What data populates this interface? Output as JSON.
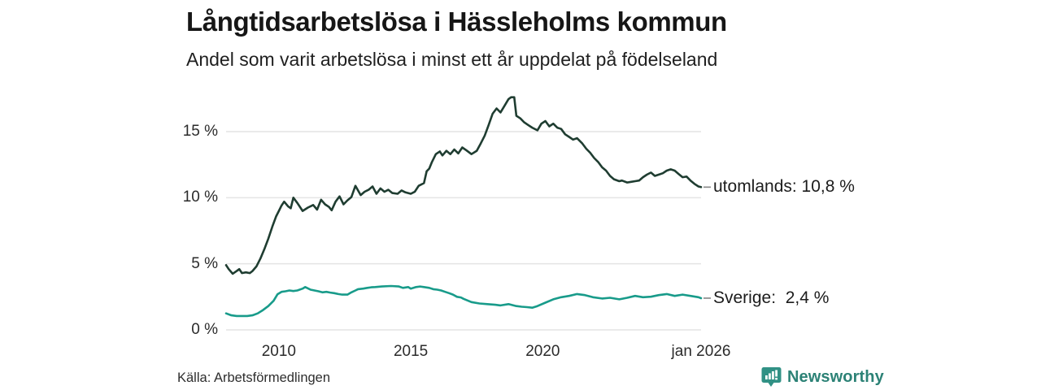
{
  "header": {
    "title": "Långtidsarbetslösa i Hässleholms kommun",
    "subtitle": "Andel som varit arbetslösa i minst ett år uppdelat på födelseland"
  },
  "footer": {
    "source": "Källa: Arbetsförmedlingen",
    "brand": "Newsworthy",
    "brand_color": "#2c8276",
    "brand_icon": "newsworthy-speech-bubble-bar-chart"
  },
  "chart_data": {
    "type": "line",
    "title": "Långtidsarbetslösa i Hässleholms kommun",
    "subtitle": "Andel som varit arbetslösa i minst ett år uppdelat på födelseland",
    "xlabel": "",
    "ylabel": "%",
    "x_range": [
      2008,
      2026
    ],
    "ylim": [
      0,
      18
    ],
    "grid": "horizontal",
    "grid_color": "#e4e4e4",
    "legend_position": "right-end-labels",
    "connector_color": "#8c8c8c",
    "y_ticks": [
      {
        "value": 15,
        "label": "15 %"
      },
      {
        "value": 10,
        "label": "10 %"
      },
      {
        "value": 5,
        "label": "5 %"
      },
      {
        "value": 0,
        "label": "0 %"
      }
    ],
    "x_ticks": [
      {
        "year": 2010,
        "label": "2010"
      },
      {
        "year": 2015,
        "label": "2015"
      },
      {
        "year": 2020,
        "label": "2020"
      },
      {
        "year": 2026,
        "label": "jan 2026"
      }
    ],
    "series": [
      {
        "name": "utomlands",
        "color": "#1f3d31",
        "end_label": "utomlands: 10,8 %",
        "end_value": 10.8,
        "points": [
          [
            2008.0,
            4.9
          ],
          [
            2008.1,
            4.6
          ],
          [
            2008.25,
            4.25
          ],
          [
            2008.4,
            4.45
          ],
          [
            2008.5,
            4.6
          ],
          [
            2008.6,
            4.3
          ],
          [
            2008.75,
            4.35
          ],
          [
            2008.9,
            4.3
          ],
          [
            2009.0,
            4.45
          ],
          [
            2009.15,
            4.8
          ],
          [
            2009.3,
            5.4
          ],
          [
            2009.45,
            6.1
          ],
          [
            2009.6,
            6.9
          ],
          [
            2009.75,
            7.8
          ],
          [
            2009.9,
            8.6
          ],
          [
            2010.0,
            9.0
          ],
          [
            2010.1,
            9.4
          ],
          [
            2010.2,
            9.7
          ],
          [
            2010.35,
            9.35
          ],
          [
            2010.45,
            9.2
          ],
          [
            2010.55,
            10.0
          ],
          [
            2010.7,
            9.6
          ],
          [
            2010.9,
            9.0
          ],
          [
            2011.1,
            9.25
          ],
          [
            2011.3,
            9.45
          ],
          [
            2011.45,
            9.1
          ],
          [
            2011.6,
            9.85
          ],
          [
            2011.75,
            9.5
          ],
          [
            2011.9,
            9.3
          ],
          [
            2012.0,
            9.05
          ],
          [
            2012.15,
            9.7
          ],
          [
            2012.3,
            10.1
          ],
          [
            2012.45,
            9.5
          ],
          [
            2012.6,
            9.8
          ],
          [
            2012.75,
            10.05
          ],
          [
            2012.9,
            10.9
          ],
          [
            2013.1,
            10.2
          ],
          [
            2013.25,
            10.45
          ],
          [
            2013.4,
            10.6
          ],
          [
            2013.55,
            10.85
          ],
          [
            2013.7,
            10.3
          ],
          [
            2013.85,
            10.7
          ],
          [
            2014.0,
            10.45
          ],
          [
            2014.15,
            10.6
          ],
          [
            2014.3,
            10.35
          ],
          [
            2014.5,
            10.3
          ],
          [
            2014.65,
            10.55
          ],
          [
            2014.8,
            10.4
          ],
          [
            2015.0,
            10.3
          ],
          [
            2015.15,
            10.45
          ],
          [
            2015.3,
            10.9
          ],
          [
            2015.5,
            11.1
          ],
          [
            2015.6,
            12.0
          ],
          [
            2015.7,
            12.2
          ],
          [
            2015.8,
            12.7
          ],
          [
            2015.95,
            13.3
          ],
          [
            2016.1,
            13.5
          ],
          [
            2016.2,
            13.2
          ],
          [
            2016.35,
            13.55
          ],
          [
            2016.5,
            13.3
          ],
          [
            2016.65,
            13.65
          ],
          [
            2016.8,
            13.35
          ],
          [
            2016.95,
            13.8
          ],
          [
            2017.1,
            13.6
          ],
          [
            2017.3,
            13.3
          ],
          [
            2017.5,
            13.55
          ],
          [
            2017.65,
            14.1
          ],
          [
            2017.8,
            14.7
          ],
          [
            2017.95,
            15.5
          ],
          [
            2018.1,
            16.35
          ],
          [
            2018.25,
            16.75
          ],
          [
            2018.4,
            16.45
          ],
          [
            2018.55,
            16.95
          ],
          [
            2018.7,
            17.45
          ],
          [
            2018.8,
            17.6
          ],
          [
            2018.92,
            17.6
          ],
          [
            2019.0,
            16.2
          ],
          [
            2019.15,
            16.0
          ],
          [
            2019.3,
            15.7
          ],
          [
            2019.45,
            15.5
          ],
          [
            2019.6,
            15.3
          ],
          [
            2019.8,
            15.1
          ],
          [
            2019.95,
            15.6
          ],
          [
            2020.1,
            15.8
          ],
          [
            2020.25,
            15.4
          ],
          [
            2020.4,
            15.6
          ],
          [
            2020.55,
            15.3
          ],
          [
            2020.7,
            15.2
          ],
          [
            2020.85,
            14.8
          ],
          [
            2021.0,
            14.6
          ],
          [
            2021.15,
            14.4
          ],
          [
            2021.3,
            14.5
          ],
          [
            2021.5,
            14.1
          ],
          [
            2021.65,
            13.7
          ],
          [
            2021.8,
            13.4
          ],
          [
            2021.95,
            13.0
          ],
          [
            2022.1,
            12.7
          ],
          [
            2022.25,
            12.3
          ],
          [
            2022.4,
            12.05
          ],
          [
            2022.55,
            11.65
          ],
          [
            2022.7,
            11.4
          ],
          [
            2022.9,
            11.25
          ],
          [
            2023.0,
            11.3
          ],
          [
            2023.2,
            11.15
          ],
          [
            2023.35,
            11.2
          ],
          [
            2023.5,
            11.25
          ],
          [
            2023.65,
            11.3
          ],
          [
            2023.8,
            11.55
          ],
          [
            2023.95,
            11.75
          ],
          [
            2024.1,
            11.9
          ],
          [
            2024.25,
            11.65
          ],
          [
            2024.4,
            11.75
          ],
          [
            2024.55,
            11.85
          ],
          [
            2024.7,
            12.05
          ],
          [
            2024.85,
            12.15
          ],
          [
            2025.0,
            12.05
          ],
          [
            2025.15,
            11.8
          ],
          [
            2025.3,
            11.55
          ],
          [
            2025.45,
            11.6
          ],
          [
            2025.6,
            11.3
          ],
          [
            2025.75,
            11.05
          ],
          [
            2025.9,
            10.85
          ],
          [
            2026.0,
            10.8
          ]
        ]
      },
      {
        "name": "Sverige",
        "color": "#189b8a",
        "end_label": "Sverige:  2,4 %",
        "end_value": 2.4,
        "points": [
          [
            2008.0,
            1.25
          ],
          [
            2008.2,
            1.1
          ],
          [
            2008.4,
            1.05
          ],
          [
            2008.6,
            1.05
          ],
          [
            2008.8,
            1.05
          ],
          [
            2009.0,
            1.1
          ],
          [
            2009.2,
            1.25
          ],
          [
            2009.4,
            1.5
          ],
          [
            2009.6,
            1.8
          ],
          [
            2009.8,
            2.2
          ],
          [
            2009.95,
            2.7
          ],
          [
            2010.1,
            2.88
          ],
          [
            2010.25,
            2.92
          ],
          [
            2010.4,
            2.98
          ],
          [
            2010.55,
            2.94
          ],
          [
            2010.7,
            2.98
          ],
          [
            2010.9,
            3.12
          ],
          [
            2011.0,
            3.24
          ],
          [
            2011.2,
            3.04
          ],
          [
            2011.35,
            2.98
          ],
          [
            2011.5,
            2.92
          ],
          [
            2011.65,
            2.84
          ],
          [
            2011.8,
            2.88
          ],
          [
            2011.95,
            2.82
          ],
          [
            2012.1,
            2.78
          ],
          [
            2012.25,
            2.71
          ],
          [
            2012.4,
            2.67
          ],
          [
            2012.6,
            2.67
          ],
          [
            2012.75,
            2.84
          ],
          [
            2012.9,
            2.98
          ],
          [
            2013.0,
            3.08
          ],
          [
            2013.2,
            3.12
          ],
          [
            2013.35,
            3.18
          ],
          [
            2013.5,
            3.22
          ],
          [
            2013.65,
            3.24
          ],
          [
            2013.9,
            3.28
          ],
          [
            2014.25,
            3.32
          ],
          [
            2014.55,
            3.28
          ],
          [
            2014.7,
            3.18
          ],
          [
            2014.9,
            3.24
          ],
          [
            2015.0,
            3.12
          ],
          [
            2015.2,
            3.24
          ],
          [
            2015.35,
            3.28
          ],
          [
            2015.5,
            3.24
          ],
          [
            2015.7,
            3.18
          ],
          [
            2015.85,
            3.08
          ],
          [
            2016.0,
            3.04
          ],
          [
            2016.15,
            2.98
          ],
          [
            2016.3,
            2.88
          ],
          [
            2016.45,
            2.78
          ],
          [
            2016.6,
            2.67
          ],
          [
            2016.75,
            2.5
          ],
          [
            2016.9,
            2.45
          ],
          [
            2017.0,
            2.35
          ],
          [
            2017.3,
            2.1
          ],
          [
            2017.6,
            2.0
          ],
          [
            2017.9,
            1.95
          ],
          [
            2018.2,
            1.9
          ],
          [
            2018.4,
            1.85
          ],
          [
            2018.7,
            1.95
          ],
          [
            2019.0,
            1.8
          ],
          [
            2019.2,
            1.75
          ],
          [
            2019.4,
            1.72
          ],
          [
            2019.6,
            1.68
          ],
          [
            2019.8,
            1.8
          ],
          [
            2020.1,
            2.06
          ],
          [
            2020.4,
            2.31
          ],
          [
            2020.7,
            2.47
          ],
          [
            2021.0,
            2.57
          ],
          [
            2021.3,
            2.71
          ],
          [
            2021.6,
            2.63
          ],
          [
            2021.9,
            2.47
          ],
          [
            2022.25,
            2.37
          ],
          [
            2022.55,
            2.43
          ],
          [
            2022.9,
            2.31
          ],
          [
            2023.2,
            2.43
          ],
          [
            2023.5,
            2.57
          ],
          [
            2023.8,
            2.47
          ],
          [
            2024.1,
            2.51
          ],
          [
            2024.4,
            2.63
          ],
          [
            2024.7,
            2.71
          ],
          [
            2025.0,
            2.57
          ],
          [
            2025.3,
            2.67
          ],
          [
            2025.6,
            2.57
          ],
          [
            2025.9,
            2.47
          ],
          [
            2026.0,
            2.4
          ]
        ]
      }
    ]
  }
}
